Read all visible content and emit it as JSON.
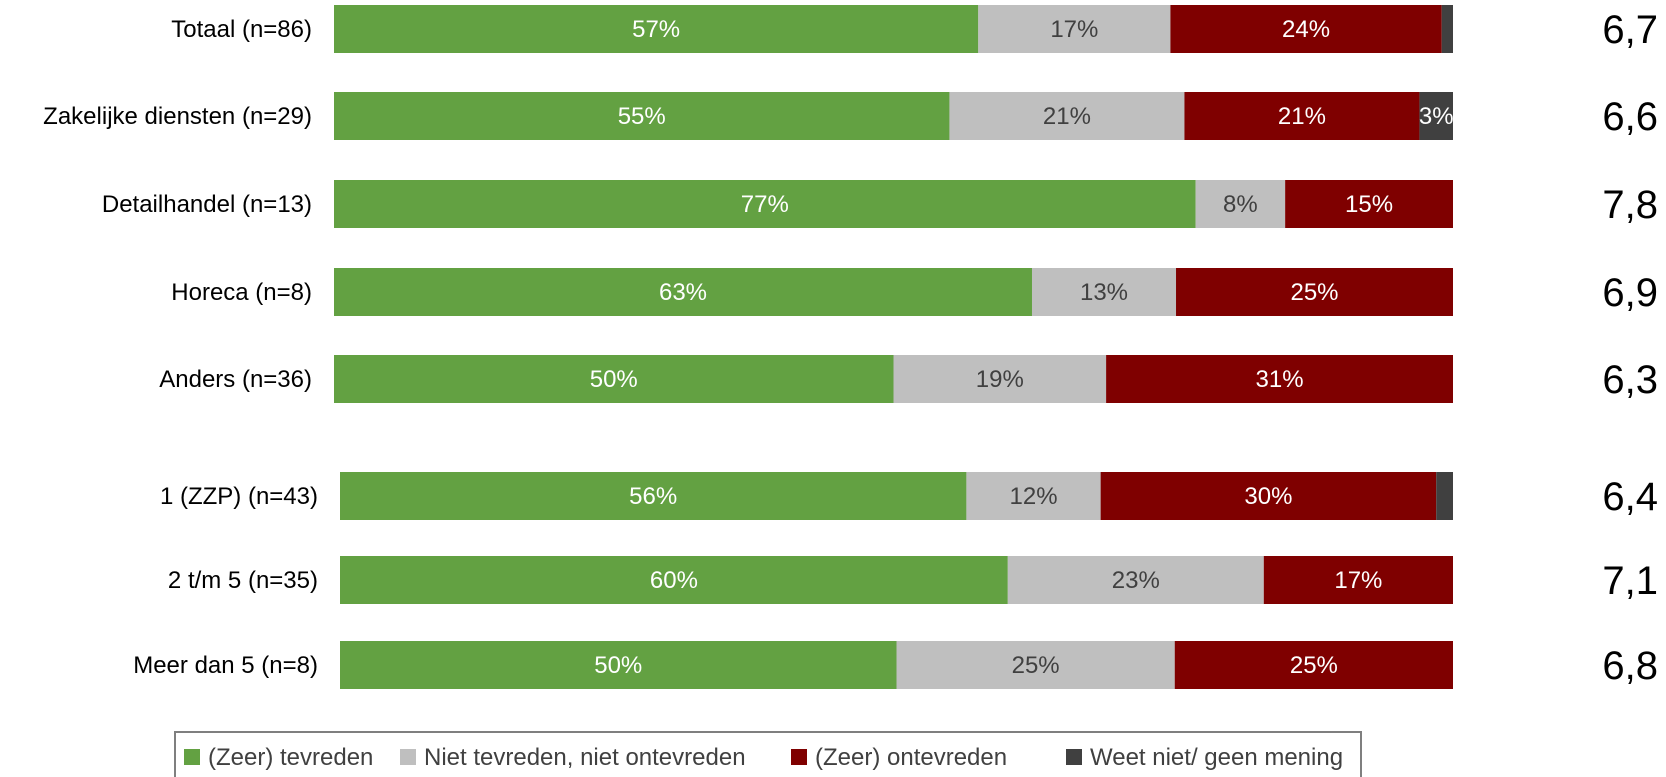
{
  "chart_data": {
    "type": "bar",
    "orientation": "horizontal",
    "stacked": true,
    "percent_stacked": true,
    "categories": [
      "Totaal (n=86)",
      "Zakelijke diensten (n=29)",
      "Detailhandel (n=13)",
      "Horeca (n=8)",
      "Anders (n=36)",
      "1 (ZZP) (n=43)",
      "2 t/m 5 (n=35)",
      "Meer dan 5 (n=8)"
    ],
    "groups": [
      [
        0,
        1,
        2,
        3,
        4
      ],
      [
        5,
        6,
        7
      ]
    ],
    "series": [
      {
        "name": "(Zeer) tevreden",
        "color": "#63a142",
        "label_color": "#ffffff",
        "values": [
          57,
          55,
          77,
          63,
          50,
          56,
          60,
          50
        ],
        "labels": [
          "57%",
          "55%",
          "77%",
          "63%",
          "50%",
          "56%",
          "60%",
          "50%"
        ]
      },
      {
        "name": "Niet tevreden, niet ontevreden",
        "color": "#bfbfbf",
        "label_color": "#404040",
        "values": [
          17,
          21,
          8,
          13,
          19,
          12,
          23,
          25
        ],
        "labels": [
          "17%",
          "21%",
          "8%",
          "13%",
          "19%",
          "12%",
          "23%",
          "25%"
        ]
      },
      {
        "name": "(Zeer) ontevreden",
        "color": "#7f0000",
        "label_color": "#ffffff",
        "values": [
          24,
          21,
          15,
          25,
          31,
          30,
          17,
          25
        ],
        "labels": [
          "24%",
          "21%",
          "15%",
          "25%",
          "31%",
          "30%",
          "17%",
          "25%"
        ]
      },
      {
        "name": "Weet niet/ geen mening",
        "color": "#404040",
        "label_color": "#ffffff",
        "values": [
          1,
          3,
          0,
          0,
          0,
          1.5,
          0,
          0
        ],
        "labels": [
          "",
          "3%",
          "",
          "",
          "",
          "",
          "",
          ""
        ]
      }
    ],
    "scores": [
      "6,7",
      "6,6",
      "7,8",
      "6,9",
      "6,3",
      "6,4",
      "7,1",
      "6,8"
    ],
    "legend_position": "bottom",
    "grid": false
  }
}
